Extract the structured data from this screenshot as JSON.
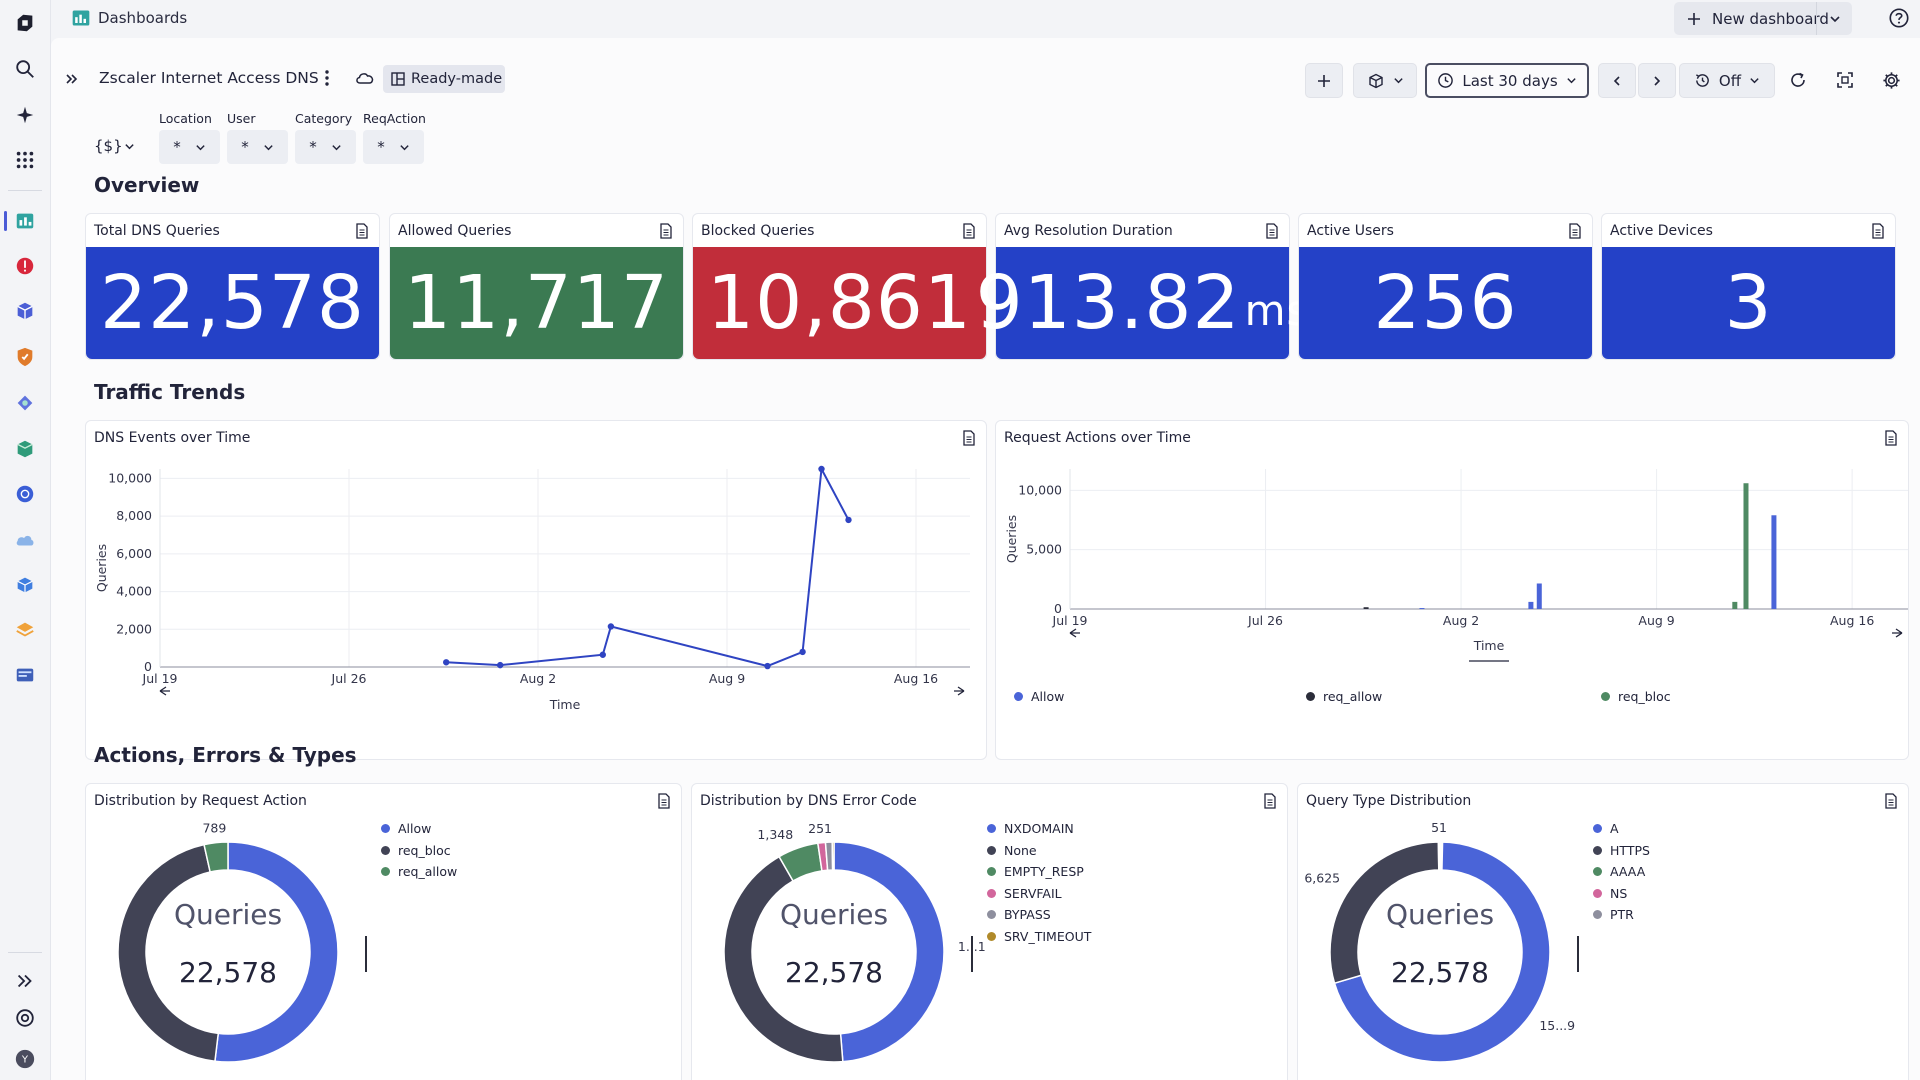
{
  "app": {
    "title": "Dashboards"
  },
  "topbar": {
    "new_dashboard_label": "New dashboard"
  },
  "dashboard": {
    "title": "Zscaler Internet Access DNS",
    "badge": "Ready-made",
    "timeframe": "Last 30 days",
    "refresh": "Off",
    "variables": [
      {
        "label": "Location",
        "value": "*"
      },
      {
        "label": "User",
        "value": "*"
      },
      {
        "label": "Category",
        "value": "*"
      },
      {
        "label": "ReqAction",
        "value": "*"
      }
    ],
    "variables_toggle": "{$}"
  },
  "sections": {
    "overview": "Overview",
    "traffic": "Traffic Trends",
    "actions": "Actions, Errors & Types"
  },
  "kpis": [
    {
      "title": "Total DNS Queries",
      "value": "22,578",
      "unit": "",
      "color": "#2441c7"
    },
    {
      "title": "Allowed Queries",
      "value": "11,717",
      "unit": "",
      "color": "#3b7a52"
    },
    {
      "title": "Blocked Queries",
      "value": "10,861",
      "unit": "",
      "color": "#c12d3a"
    },
    {
      "title": "Avg Resolution Duration",
      "value": "913.82",
      "unit": "ms",
      "color": "#2441c7"
    },
    {
      "title": "Active Users",
      "value": "256",
      "unit": "",
      "color": "#2441c7"
    },
    {
      "title": "Active Devices",
      "value": "3",
      "unit": "",
      "color": "#2441c7"
    }
  ],
  "chart_data": [
    {
      "type": "line",
      "title": "DNS Events over Time",
      "xlabel": "Time",
      "ylabel": "Queries",
      "x_ticks": [
        "Jul 19",
        "Jul 26",
        "Aug 2",
        "Aug 9",
        "Aug 16"
      ],
      "y_ticks": [
        "0",
        "2,000",
        "4,000",
        "6,000",
        "8,000",
        "10,000"
      ],
      "ylim": [
        0,
        10500
      ],
      "xlim_days": [
        0,
        30
      ],
      "grid": true,
      "color": "#2f44c2",
      "points": [
        {
          "x": 10.6,
          "y": 250
        },
        {
          "x": 12.6,
          "y": 100
        },
        {
          "x": 16.4,
          "y": 650
        },
        {
          "x": 16.7,
          "y": 2150
        },
        {
          "x": 22.5,
          "y": 50
        },
        {
          "x": 23.8,
          "y": 800
        },
        {
          "x": 24.5,
          "y": 10500
        },
        {
          "x": 25.5,
          "y": 7800
        }
      ]
    },
    {
      "type": "bar",
      "title": "Request Actions over Time",
      "xlabel": "Time",
      "ylabel": "Queries",
      "x_ticks": [
        "Jul 19",
        "Jul 26",
        "Aug 2",
        "Aug 9",
        "Aug 16"
      ],
      "y_ticks": [
        "0",
        "5,000",
        "10,000"
      ],
      "ylim": [
        0,
        11800
      ],
      "xlim_days": [
        0,
        30
      ],
      "grid": true,
      "legend_placement": "bottom",
      "series": [
        {
          "name": "Allow",
          "color": "#4a64d8",
          "bars": [
            {
              "x": 12.6,
              "y": 80
            },
            {
              "x": 16.5,
              "y": 600
            },
            {
              "x": 16.8,
              "y": 2150
            },
            {
              "x": 25.2,
              "y": 7900
            }
          ]
        },
        {
          "name": "req_allow",
          "color": "#2b2d3a",
          "bars": [
            {
              "x": 10.6,
              "y": 150
            }
          ]
        },
        {
          "name": "req_bloc",
          "color": "#4f8a63",
          "bars": [
            {
              "x": 23.8,
              "y": 600
            },
            {
              "x": 24.2,
              "y": 10600
            }
          ]
        }
      ]
    },
    {
      "type": "pie",
      "title": "Distribution by Request Action",
      "center_label": "Queries",
      "center_value": "22,578",
      "slices": [
        {
          "name": "Allow",
          "value": 11717,
          "color": "#4a64d8",
          "label": ""
        },
        {
          "name": "req_bloc",
          "value": 10072,
          "color": "#414355",
          "label": ""
        },
        {
          "name": "req_allow",
          "value": 789,
          "color": "#4f8a63",
          "label": "789"
        }
      ]
    },
    {
      "type": "pie",
      "title": "Distribution by DNS Error Code",
      "center_label": "Queries",
      "center_value": "22,578",
      "slices": [
        {
          "name": "NXDOMAIN",
          "value": 11000,
          "color": "#4a64d8",
          "label": "1...1"
        },
        {
          "name": "None",
          "value": 9700,
          "color": "#414355",
          "label": ""
        },
        {
          "name": "EMPTY_RESP",
          "value": 1348,
          "color": "#4f8a63",
          "label": "1,348"
        },
        {
          "name": "SERVFAIL",
          "value": 251,
          "color": "#d2669c",
          "label": "251"
        },
        {
          "name": "BYPASS",
          "value": 220,
          "color": "#8e8f9e",
          "label": ""
        },
        {
          "name": "SRV_TIMEOUT",
          "value": 59,
          "color": "#b08a2a",
          "label": ""
        }
      ]
    },
    {
      "type": "pie",
      "title": "Query Type Distribution",
      "center_label": "Queries",
      "center_value": "22,578",
      "slices": [
        {
          "name": "A",
          "value": 15900,
          "color": "#4a64d8",
          "label": "15...9"
        },
        {
          "name": "HTTPS",
          "value": 6625,
          "color": "#414355",
          "label": "6,625"
        },
        {
          "name": "AAAA",
          "value": 51,
          "color": "#4f8a63",
          "label": "51"
        },
        {
          "name": "NS",
          "value": 1,
          "color": "#d2669c",
          "label": ""
        },
        {
          "name": "PTR",
          "value": 1,
          "color": "#8e8f9e",
          "label": ""
        }
      ]
    }
  ]
}
